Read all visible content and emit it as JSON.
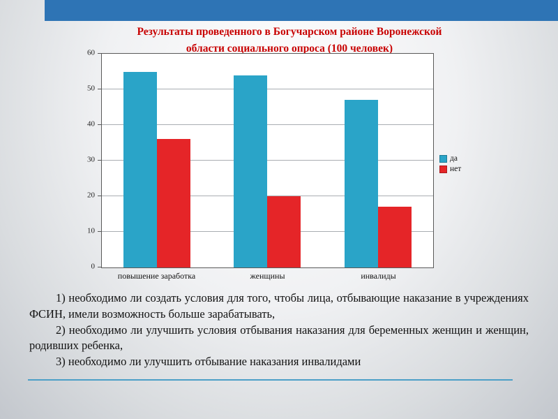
{
  "title": {
    "line1": "Результаты проведенного в Богучарском районе Воронежской",
    "line2": "области социального опроса (100 человек)"
  },
  "chart_data": {
    "type": "bar",
    "categories": [
      "повышение заработка",
      "женщины",
      "инвалиды"
    ],
    "series": [
      {
        "name": "да",
        "color": "#2aa4c8",
        "values": [
          55,
          54,
          47
        ]
      },
      {
        "name": "нет",
        "color": "#e52528",
        "values": [
          36,
          20,
          17
        ]
      }
    ],
    "title": "Результаты проведенного в Богучарском районе Воронежской области социального опроса (100 человек)",
    "xlabel": "",
    "ylabel": "",
    "ylim": [
      0,
      60
    ],
    "ytick_step": 10,
    "grid": true,
    "legend_position": "right"
  },
  "notes": [
    "1) необходимо ли создать условия для того, чтобы лица, отбывающие наказание в учреждениях ФСИН, имели возможность больше зарабатывать,",
    "2) необходимо ли улучшить условия отбывания наказания для беременных женщин и женщин, родивших ребенка,",
    "3) необходимо ли улучшить отбывание наказания инвалидами"
  ],
  "colors": {
    "top_band": "#2e74b5",
    "title_text": "#c80000",
    "divider": "#4c9fc7",
    "series_yes": "#2aa4c8",
    "series_no": "#e52528"
  }
}
